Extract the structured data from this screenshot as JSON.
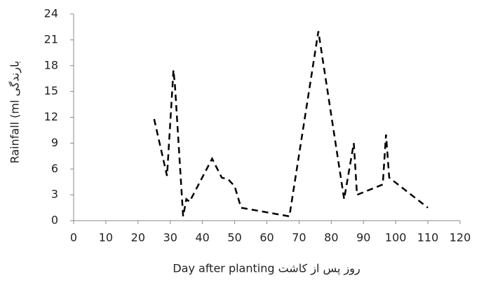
{
  "chart_data": {
    "type": "line",
    "x_label": "Day after planting روز پس از کاشت",
    "y_label": "Rainfall (ml بارندگی",
    "x": [
      25,
      29,
      31,
      31.5,
      34,
      35,
      36,
      43,
      46,
      48,
      50,
      52,
      67,
      76,
      84,
      87,
      88,
      96,
      97,
      98,
      110
    ],
    "values": [
      11.8,
      5.2,
      17.5,
      15.5,
      0.5,
      2.5,
      2.2,
      7.2,
      5,
      4.8,
      4,
      1.5,
      0.5,
      22,
      2.5,
      9,
      3,
      4.2,
      10,
      5,
      1.5
    ],
    "color": "#000000",
    "xlim": [
      0,
      120
    ],
    "xticks": [
      0,
      10,
      20,
      30,
      40,
      50,
      60,
      70,
      80,
      90,
      100,
      110,
      120
    ],
    "ylim": [
      0,
      24
    ],
    "yticks": [
      0,
      3,
      6,
      9,
      12,
      15,
      18,
      21,
      24
    ]
  }
}
